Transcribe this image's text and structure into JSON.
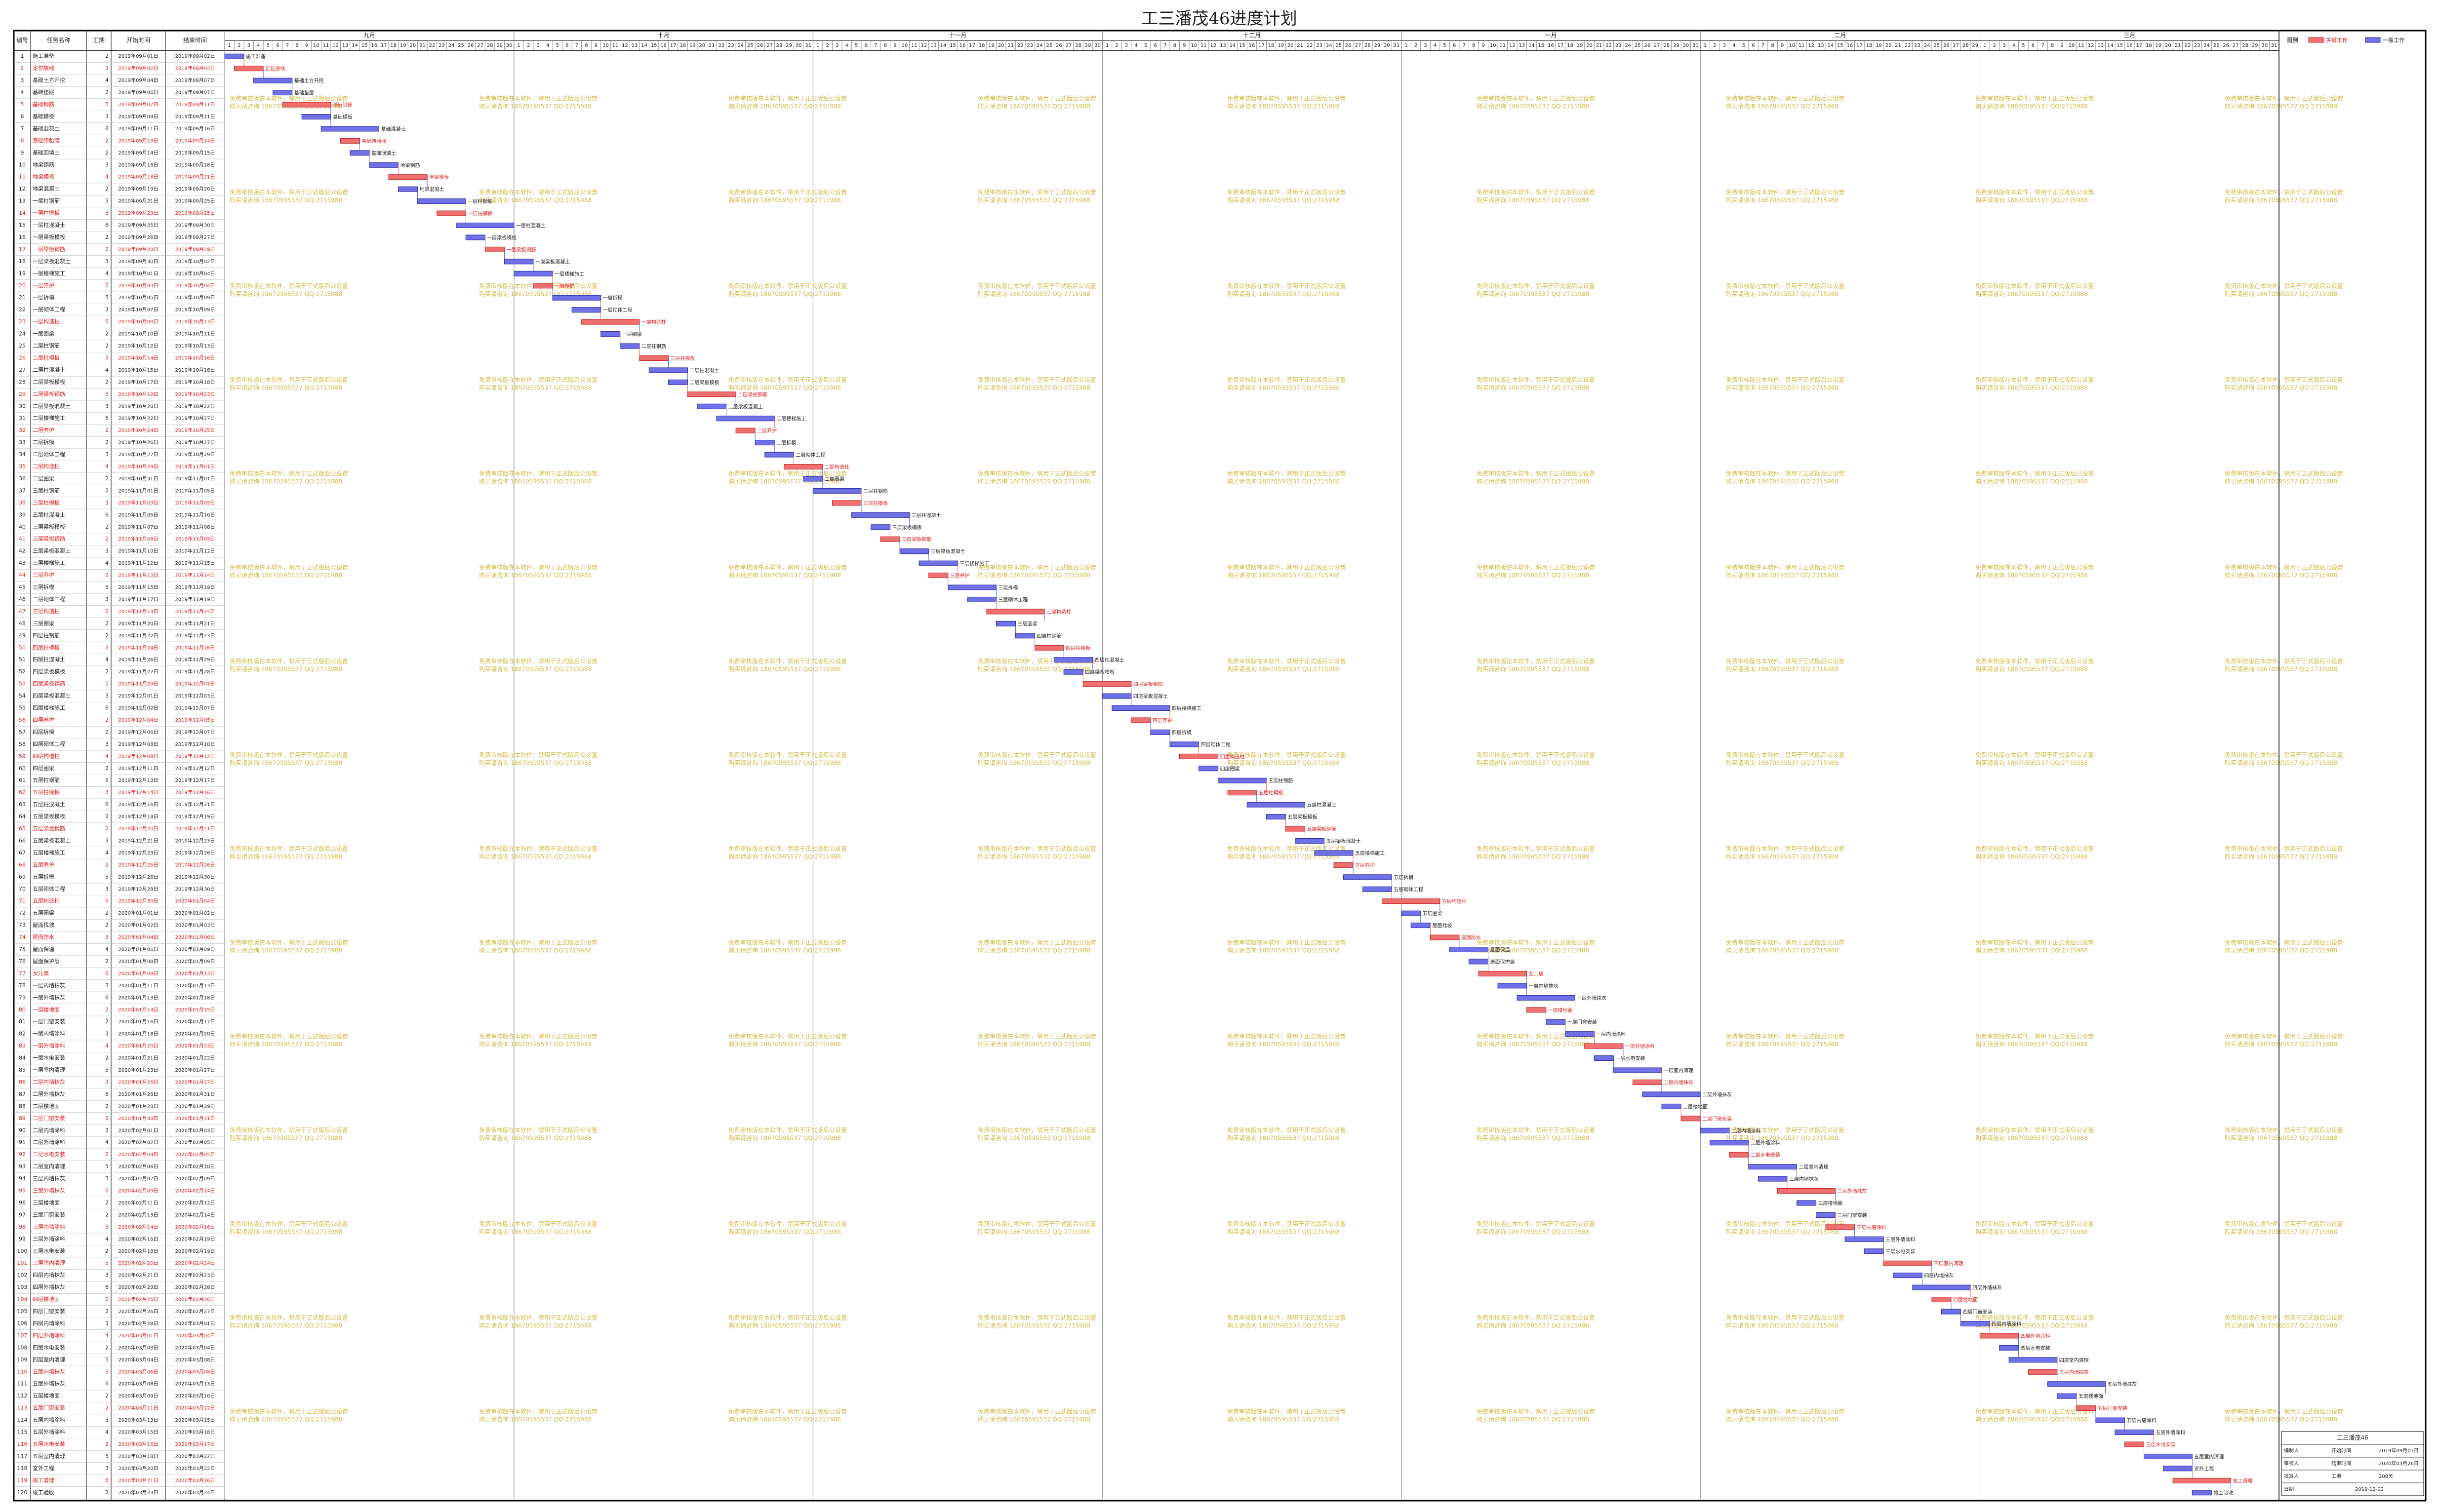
{
  "gantt": {
    "title": "工三潘茂46进度计划",
    "columns": [
      "编号",
      "任务名称",
      "工期",
      "开始时间",
      "结束时间"
    ],
    "months": [
      {
        "label": "九月",
        "days": [
          1,
          2,
          3,
          4,
          5,
          6,
          7,
          8,
          9,
          10,
          11,
          12,
          13,
          14,
          15,
          16,
          17,
          18,
          19,
          20,
          21,
          22,
          23,
          24,
          25,
          26,
          27,
          28,
          29,
          30
        ]
      },
      {
        "label": "十月",
        "days": [
          1,
          2,
          3,
          4,
          5,
          6,
          7,
          8,
          9,
          10,
          11,
          12,
          13,
          14,
          15,
          16,
          17,
          18,
          19,
          20,
          21,
          22,
          23,
          24,
          25,
          26,
          27,
          28,
          29,
          30,
          31
        ]
      },
      {
        "label": "十一月",
        "days": [
          1,
          2,
          3,
          4,
          5,
          6,
          7,
          8,
          9,
          10,
          11,
          12,
          13,
          14,
          15,
          16,
          17,
          18,
          19,
          20,
          21,
          22,
          23,
          24,
          25,
          26,
          27,
          28,
          29,
          30
        ]
      },
      {
        "label": "十二月",
        "days": [
          1,
          2,
          3,
          4,
          5,
          6,
          7,
          8,
          9,
          10,
          11,
          12,
          13,
          14,
          15,
          16,
          17,
          18,
          19,
          20,
          21,
          22,
          23,
          24,
          25,
          26,
          27,
          28,
          29,
          30,
          31
        ]
      },
      {
        "label": "一月",
        "days": [
          1,
          2,
          3,
          4,
          5,
          6,
          7,
          8,
          9,
          10,
          11,
          12,
          13,
          14,
          15,
          16,
          17,
          18,
          19,
          20,
          21,
          22,
          23,
          24,
          25,
          26,
          27,
          28,
          29,
          30,
          31
        ]
      },
      {
        "label": "二月",
        "days": [
          1,
          2,
          3,
          4,
          5,
          6,
          7,
          8,
          9,
          10,
          11,
          12,
          13,
          14,
          15,
          16,
          17,
          18,
          19,
          20,
          21,
          22,
          23,
          24,
          25,
          26,
          27,
          28,
          29
        ]
      },
      {
        "label": "三月",
        "days": [
          1,
          2,
          3,
          4,
          5,
          6,
          7,
          8,
          9,
          10,
          11,
          12,
          13,
          14,
          15,
          16,
          17,
          18,
          19,
          20,
          21,
          22,
          23,
          24,
          25,
          26,
          27,
          28,
          29,
          30,
          31
        ]
      }
    ],
    "rows": [
      [
        1,
        "施工准备",
        2,
        "2019年09月01日",
        "2019年09月02日",
        0
      ],
      [
        2,
        "定位放线",
        3,
        "2019年09月02日",
        "2019年09月04日",
        1
      ],
      [
        3,
        "基础土方开挖",
        4,
        "2019年09月04日",
        "2019年09月07日",
        0
      ],
      [
        4,
        "基础垫层",
        2,
        "2019年09月06日",
        "2019年09月07日",
        0
      ],
      [
        5,
        "基础钢筋",
        5,
        "2019年09月07日",
        "2019年09月11日",
        1
      ],
      [
        6,
        "基础模板",
        3,
        "2019年09月09日",
        "2019年09月11日",
        0
      ],
      [
        7,
        "基础混凝土",
        6,
        "2019年09月11日",
        "2019年09月16日",
        0
      ],
      [
        8,
        "基础砖胎膜",
        2,
        "2019年09月13日",
        "2019年09月14日",
        1
      ],
      [
        9,
        "基础回填土",
        2,
        "2019年09月14日",
        "2019年09月15日",
        0
      ],
      [
        10,
        "地梁钢筋",
        3,
        "2019年09月16日",
        "2019年09月18日",
        0
      ],
      [
        11,
        "地梁模板",
        4,
        "2019年09月18日",
        "2019年09月21日",
        1
      ],
      [
        12,
        "地梁混凝土",
        2,
        "2019年09月19日",
        "2019年09月20日",
        0
      ],
      [
        13,
        "一层柱钢筋",
        5,
        "2019年09月21日",
        "2019年09月25日",
        0
      ],
      [
        14,
        "一层柱模板",
        3,
        "2019年09月23日",
        "2019年09月25日",
        1
      ],
      [
        15,
        "一层柱混凝土",
        6,
        "2019年09月25日",
        "2019年09月30日",
        0
      ],
      [
        16,
        "一层梁板模板",
        2,
        "2019年09月26日",
        "2019年09月27日",
        0
      ],
      [
        17,
        "一层梁板钢筋",
        2,
        "2019年09月28日",
        "2019年09月29日",
        1
      ],
      [
        18,
        "一层梁板混凝土",
        3,
        "2019年09月30日",
        "2019年10月02日",
        0
      ],
      [
        19,
        "一层楼梯施工",
        4,
        "2019年10月01日",
        "2019年10月04日",
        0
      ],
      [
        20,
        "一层养护",
        2,
        "2019年10月03日",
        "2019年10月04日",
        1
      ],
      [
        21,
        "一层拆模",
        5,
        "2019年10月05日",
        "2019年10月09日",
        0
      ],
      [
        22,
        "一层砌体工程",
        3,
        "2019年10月07日",
        "2019年10月09日",
        0
      ],
      [
        23,
        "一层构造柱",
        6,
        "2019年10月08日",
        "2019年10月13日",
        1
      ],
      [
        24,
        "一层圈梁",
        2,
        "2019年10月10日",
        "2019年10月11日",
        0
      ],
      [
        25,
        "二层柱钢筋",
        2,
        "2019年10月12日",
        "2019年10月13日",
        0
      ],
      [
        26,
        "二层柱模板",
        3,
        "2019年10月14日",
        "2019年10月16日",
        1
      ],
      [
        27,
        "二层柱混凝土",
        4,
        "2019年10月15日",
        "2019年10月18日",
        0
      ],
      [
        28,
        "二层梁板模板",
        2,
        "2019年10月17日",
        "2019年10月18日",
        0
      ],
      [
        29,
        "二层梁板钢筋",
        5,
        "2019年10月19日",
        "2019年10月23日",
        1
      ],
      [
        30,
        "二层梁板混凝土",
        3,
        "2019年10月20日",
        "2019年10月22日",
        0
      ],
      [
        31,
        "二层楼梯施工",
        6,
        "2019年10月22日",
        "2019年10月27日",
        0
      ],
      [
        32,
        "二层养护",
        2,
        "2019年10月24日",
        "2019年10月25日",
        1
      ],
      [
        33,
        "二层拆模",
        2,
        "2019年10月26日",
        "2019年10月27日",
        0
      ],
      [
        34,
        "二层砌体工程",
        3,
        "2019年10月27日",
        "2019年10月29日",
        0
      ],
      [
        35,
        "二层构造柱",
        4,
        "2019年10月29日",
        "2019年11月01日",
        1
      ],
      [
        36,
        "二层圈梁",
        2,
        "2019年10月31日",
        "2019年11月01日",
        0
      ],
      [
        37,
        "三层柱钢筋",
        5,
        "2019年11月01日",
        "2019年11月05日",
        0
      ],
      [
        38,
        "三层柱模板",
        3,
        "2019年11月03日",
        "2019年11月05日",
        1
      ],
      [
        39,
        "三层柱混凝土",
        6,
        "2019年11月05日",
        "2019年11月10日",
        0
      ],
      [
        40,
        "三层梁板模板",
        2,
        "2019年11月07日",
        "2019年11月08日",
        0
      ],
      [
        41,
        "三层梁板钢筋",
        2,
        "2019年11月08日",
        "2019年11月09日",
        1
      ],
      [
        42,
        "三层梁板混凝土",
        3,
        "2019年11月10日",
        "2019年11月12日",
        0
      ],
      [
        43,
        "三层楼梯施工",
        4,
        "2019年11月12日",
        "2019年11月15日",
        0
      ],
      [
        44,
        "三层养护",
        2,
        "2019年11月13日",
        "2019年11月14日",
        1
      ],
      [
        45,
        "三层拆模",
        5,
        "2019年11月15日",
        "2019年11月19日",
        0
      ],
      [
        46,
        "三层砌体工程",
        3,
        "2019年11月17日",
        "2019年11月19日",
        0
      ],
      [
        47,
        "三层构造柱",
        6,
        "2019年11月19日",
        "2019年11月24日",
        1
      ],
      [
        48,
        "三层圈梁",
        2,
        "2019年11月20日",
        "2019年11月21日",
        0
      ],
      [
        49,
        "四层柱钢筋",
        2,
        "2019年11月22日",
        "2019年11月23日",
        0
      ],
      [
        50,
        "四层柱模板",
        3,
        "2019年11月24日",
        "2019年11月26日",
        1
      ],
      [
        51,
        "四层柱混凝土",
        4,
        "2019年11月26日",
        "2019年11月29日",
        0
      ],
      [
        52,
        "四层梁板模板",
        2,
        "2019年11月27日",
        "2019年11月28日",
        0
      ],
      [
        53,
        "四层梁板钢筋",
        5,
        "2019年11月29日",
        "2019年12月03日",
        1
      ],
      [
        54,
        "四层梁板混凝土",
        3,
        "2019年12月01日",
        "2019年12月03日",
        0
      ],
      [
        55,
        "四层楼梯施工",
        6,
        "2019年12月02日",
        "2019年12月07日",
        0
      ],
      [
        56,
        "四层养护",
        2,
        "2019年12月04日",
        "2019年12月05日",
        1
      ],
      [
        57,
        "四层拆模",
        2,
        "2019年12月06日",
        "2019年12月07日",
        0
      ],
      [
        58,
        "四层砌体工程",
        3,
        "2019年12月08日",
        "2019年12月10日",
        0
      ],
      [
        59,
        "四层构造柱",
        4,
        "2019年12月09日",
        "2019年12月12日",
        1
      ],
      [
        60,
        "四层圈梁",
        2,
        "2019年12月11日",
        "2019年12月12日",
        0
      ],
      [
        61,
        "五层柱钢筋",
        5,
        "2019年12月13日",
        "2019年12月17日",
        0
      ],
      [
        62,
        "五层柱模板",
        3,
        "2019年12月14日",
        "2019年12月16日",
        1
      ],
      [
        63,
        "五层柱混凝土",
        6,
        "2019年12月16日",
        "2019年12月21日",
        0
      ],
      [
        64,
        "五层梁板模板",
        2,
        "2019年12月18日",
        "2019年12月19日",
        0
      ],
      [
        65,
        "五层梁板钢筋",
        2,
        "2019年12月20日",
        "2019年12月21日",
        1
      ],
      [
        66,
        "五层梁板混凝土",
        3,
        "2019年12月21日",
        "2019年12月23日",
        0
      ],
      [
        67,
        "五层楼梯施工",
        4,
        "2019年12月23日",
        "2019年12月26日",
        0
      ],
      [
        68,
        "五层养护",
        2,
        "2019年12月25日",
        "2019年12月26日",
        1
      ],
      [
        69,
        "五层拆模",
        5,
        "2019年12月26日",
        "2019年12月30日",
        0
      ],
      [
        70,
        "五层砌体工程",
        3,
        "2019年12月28日",
        "2019年12月30日",
        0
      ],
      [
        71,
        "五层构造柱",
        6,
        "2019年12月30日",
        "2020年01月04日",
        1
      ],
      [
        72,
        "五层圈梁",
        2,
        "2020年01月01日",
        "2020年01月02日",
        0
      ],
      [
        73,
        "屋面找坡",
        2,
        "2020年01月02日",
        "2020年01月03日",
        0
      ],
      [
        74,
        "屋面防水",
        3,
        "2020年01月04日",
        "2020年01月06日",
        1
      ],
      [
        75,
        "屋面保温",
        4,
        "2020年01月06日",
        "2020年01月09日",
        0
      ],
      [
        76,
        "屋面保护层",
        2,
        "2020年01月08日",
        "2020年01月09日",
        0
      ],
      [
        77,
        "女儿墙",
        5,
        "2020年01月09日",
        "2020年01月13日",
        1
      ],
      [
        78,
        "一层内墙抹灰",
        3,
        "2020年01月11日",
        "2020年01月13日",
        0
      ],
      [
        79,
        "一层外墙抹灰",
        6,
        "2020年01月13日",
        "2020年01月18日",
        0
      ],
      [
        80,
        "一层楼地面",
        2,
        "2020年01月14日",
        "2020年01月15日",
        1
      ],
      [
        81,
        "一层门窗安装",
        2,
        "2020年01月16日",
        "2020年01月17日",
        0
      ],
      [
        82,
        "一层内墙涂料",
        3,
        "2020年01月18日",
        "2020年01月20日",
        0
      ],
      [
        83,
        "一层外墙涂料",
        4,
        "2020年01月20日",
        "2020年01月23日",
        1
      ],
      [
        84,
        "一层水电安装",
        2,
        "2020年01月21日",
        "2020年01月22日",
        0
      ],
      [
        85,
        "一层室内清理",
        5,
        "2020年01月23日",
        "2020年01月27日",
        0
      ],
      [
        86,
        "二层内墙抹灰",
        3,
        "2020年01月25日",
        "2020年01月27日",
        1
      ],
      [
        87,
        "二层外墙抹灰",
        6,
        "2020年01月26日",
        "2020年01月31日",
        0
      ],
      [
        88,
        "二层楼地面",
        2,
        "2020年01月28日",
        "2020年01月29日",
        0
      ],
      [
        89,
        "二层门窗安装",
        2,
        "2020年01月30日",
        "2020年01月31日",
        1
      ],
      [
        90,
        "二层内墙涂料",
        3,
        "2020年02月01日",
        "2020年02月03日",
        0
      ],
      [
        91,
        "二层外墙涂料",
        4,
        "2020年02月02日",
        "2020年02月05日",
        0
      ],
      [
        92,
        "二层水电安装",
        2,
        "2020年02月04日",
        "2020年02月05日",
        1
      ],
      [
        93,
        "二层室内清理",
        5,
        "2020年02月06日",
        "2020年02月10日",
        0
      ],
      [
        94,
        "三层内墙抹灰",
        3,
        "2020年02月07日",
        "2020年02月09日",
        0
      ],
      [
        95,
        "三层外墙抹灰",
        6,
        "2020年02月09日",
        "2020年02月14日",
        1
      ],
      [
        96,
        "三层楼地面",
        2,
        "2020年02月11日",
        "2020年02月12日",
        0
      ],
      [
        97,
        "三层门窗安装",
        2,
        "2020年02月13日",
        "2020年02月14日",
        0
      ],
      [
        98,
        "三层内墙涂料",
        3,
        "2020年02月14日",
        "2020年02月16日",
        1
      ],
      [
        99,
        "三层外墙涂料",
        4,
        "2020年02月16日",
        "2020年02月19日",
        0
      ],
      [
        100,
        "三层水电安装",
        2,
        "2020年02月18日",
        "2020年02月19日",
        0
      ],
      [
        101,
        "三层室内清理",
        5,
        "2020年02月20日",
        "2020年02月24日",
        1
      ],
      [
        102,
        "四层内墙抹灰",
        3,
        "2020年02月21日",
        "2020年02月23日",
        0
      ],
      [
        103,
        "四层外墙抹灰",
        6,
        "2020年02月23日",
        "2020年02月28日",
        0
      ],
      [
        104,
        "四层楼地面",
        2,
        "2020年02月25日",
        "2020年02月26日",
        1
      ],
      [
        105,
        "四层门窗安装",
        2,
        "2020年02月26日",
        "2020年02月27日",
        0
      ],
      [
        106,
        "四层内墙涂料",
        3,
        "2020年02月28日",
        "2020年03月01日",
        0
      ],
      [
        107,
        "四层外墙涂料",
        4,
        "2020年03月01日",
        "2020年03月04日",
        1
      ],
      [
        108,
        "四层水电安装",
        2,
        "2020年03月03日",
        "2020年03月04日",
        0
      ],
      [
        109,
        "四层室内清理",
        5,
        "2020年03月04日",
        "2020年03月08日",
        0
      ],
      [
        110,
        "五层内墙抹灰",
        3,
        "2020年03月06日",
        "2020年03月08日",
        1
      ],
      [
        111,
        "五层外墙抹灰",
        6,
        "2020年03月08日",
        "2020年03月13日",
        0
      ],
      [
        112,
        "五层楼地面",
        2,
        "2020年03月09日",
        "2020年03月10日",
        0
      ],
      [
        113,
        "五层门窗安装",
        2,
        "2020年03月11日",
        "2020年03月12日",
        1
      ],
      [
        114,
        "五层内墙涂料",
        3,
        "2020年03月13日",
        "2020年03月15日",
        0
      ],
      [
        115,
        "五层外墙涂料",
        4,
        "2020年03月15日",
        "2020年03月18日",
        0
      ],
      [
        116,
        "五层水电安装",
        2,
        "2020年03月16日",
        "2020年03月17日",
        1
      ],
      [
        117,
        "五层室内清理",
        5,
        "2020年03月18日",
        "2020年03月22日",
        0
      ],
      [
        118,
        "室外工程",
        3,
        "2020年03月20日",
        "2020年03月22日",
        0
      ],
      [
        119,
        "竣工清理",
        6,
        "2020年03月21日",
        "2020年03月26日",
        1
      ],
      [
        120,
        "竣工验收",
        2,
        "2020年03月23日",
        "2020年03月24日",
        0
      ]
    ],
    "legend": {
      "title": "图例",
      "critical": "关键工作",
      "normal": "一般工作"
    },
    "watermark": [
      "免费审核版在本软件，禁用于正式版后公设置",
      "购买请咨询 18670595537 QQ:2715988"
    ],
    "info": {
      "title": "工三潘茂46",
      "rows": [
        [
          "编制人",
          "开始时间",
          "2019年09月01日"
        ],
        [
          "审核人",
          "结束时间",
          "2020年03月26日"
        ],
        [
          "批准人",
          "工期",
          "208天"
        ],
        [
          "日期",
          "2019-12-02"
        ]
      ]
    }
  }
}
